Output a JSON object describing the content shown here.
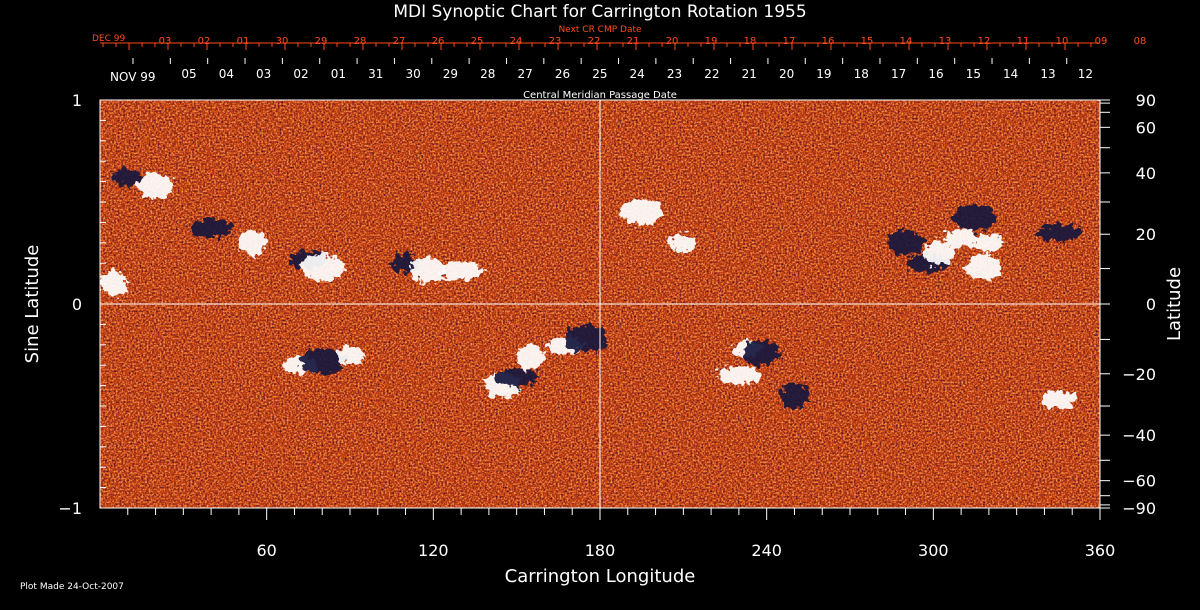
{
  "chart_data": {
    "type": "heatmap",
    "title": "MDI Synoptic Chart for Carrington Rotation 1955",
    "top_axis_title": "Next CR CMP Date",
    "middle_axis_title": "Central Meridian Passage Date",
    "xlabel": "Carrington Longitude",
    "ylabel_left": "Sine Latitude",
    "ylabel_right": "Latitude",
    "xlim": [
      0,
      360
    ],
    "ylim": [
      -1,
      1
    ],
    "x_ticks": [
      60,
      120,
      180,
      240,
      300,
      360
    ],
    "y_ticks_left": [
      {
        "value": 1,
        "label": "1"
      },
      {
        "value": 0,
        "label": "0"
      },
      {
        "value": -1,
        "label": "−1"
      }
    ],
    "y_ticks_right_deg": [
      90,
      60,
      40,
      20,
      0,
      -20,
      -40,
      -60,
      -90
    ],
    "top_axis_month_label": "DEC 99",
    "top_axis_dates": [
      "03",
      "02",
      "01",
      "30",
      "29",
      "28",
      "27",
      "26",
      "25",
      "24",
      "23",
      "22",
      "21",
      "20",
      "19",
      "18",
      "17",
      "16",
      "15",
      "14",
      "13",
      "12",
      "11",
      "10",
      "09",
      "08"
    ],
    "middle_axis_month_label": "NOV 99",
    "middle_axis_dates": [
      "05",
      "04",
      "03",
      "02",
      "01",
      "31",
      "30",
      "29",
      "28",
      "27",
      "26",
      "25",
      "24",
      "23",
      "22",
      "21",
      "20",
      "19",
      "18",
      "17",
      "16",
      "15",
      "14",
      "13",
      "12"
    ],
    "colors": {
      "background": "#000000",
      "field_base": "#d2450f",
      "positive_polarity": "#ffffff",
      "negative_polarity": "#14143c",
      "top_axis_text": "#ff4a1a",
      "axis_text": "#ffffff",
      "gridline": "#ffffff"
    },
    "active_regions": [
      {
        "lon": 10,
        "sinlat": 0.62,
        "polarity": "negative"
      },
      {
        "lon": 20,
        "sinlat": 0.58,
        "polarity": "positive"
      },
      {
        "lon": 40,
        "sinlat": 0.37,
        "polarity": "negative"
      },
      {
        "lon": 55,
        "sinlat": 0.3,
        "polarity": "positive"
      },
      {
        "lon": 75,
        "sinlat": 0.22,
        "polarity": "negative"
      },
      {
        "lon": 80,
        "sinlat": 0.18,
        "polarity": "positive"
      },
      {
        "lon": 110,
        "sinlat": 0.2,
        "polarity": "negative"
      },
      {
        "lon": 118,
        "sinlat": 0.17,
        "polarity": "positive"
      },
      {
        "lon": 130,
        "sinlat": 0.16,
        "polarity": "positive"
      },
      {
        "lon": 5,
        "sinlat": 0.1,
        "polarity": "positive"
      },
      {
        "lon": 72,
        "sinlat": -0.3,
        "polarity": "positive"
      },
      {
        "lon": 80,
        "sinlat": -0.28,
        "polarity": "negative"
      },
      {
        "lon": 90,
        "sinlat": -0.25,
        "polarity": "positive"
      },
      {
        "lon": 145,
        "sinlat": -0.4,
        "polarity": "positive"
      },
      {
        "lon": 150,
        "sinlat": -0.36,
        "polarity": "negative"
      },
      {
        "lon": 155,
        "sinlat": -0.26,
        "polarity": "positive"
      },
      {
        "lon": 168,
        "sinlat": -0.2,
        "polarity": "positive"
      },
      {
        "lon": 175,
        "sinlat": -0.17,
        "polarity": "negative"
      },
      {
        "lon": 233,
        "sinlat": -0.22,
        "polarity": "positive"
      },
      {
        "lon": 238,
        "sinlat": -0.24,
        "polarity": "negative"
      },
      {
        "lon": 230,
        "sinlat": -0.35,
        "polarity": "positive"
      },
      {
        "lon": 250,
        "sinlat": -0.45,
        "polarity": "negative"
      },
      {
        "lon": 345,
        "sinlat": -0.47,
        "polarity": "positive"
      },
      {
        "lon": 195,
        "sinlat": 0.45,
        "polarity": "positive"
      },
      {
        "lon": 210,
        "sinlat": 0.3,
        "polarity": "positive"
      },
      {
        "lon": 290,
        "sinlat": 0.3,
        "polarity": "negative"
      },
      {
        "lon": 298,
        "sinlat": 0.2,
        "polarity": "negative"
      },
      {
        "lon": 302,
        "sinlat": 0.25,
        "polarity": "positive"
      },
      {
        "lon": 310,
        "sinlat": 0.32,
        "polarity": "positive"
      },
      {
        "lon": 315,
        "sinlat": 0.42,
        "polarity": "negative"
      },
      {
        "lon": 320,
        "sinlat": 0.3,
        "polarity": "positive"
      },
      {
        "lon": 318,
        "sinlat": 0.18,
        "polarity": "positive"
      },
      {
        "lon": 345,
        "sinlat": 0.35,
        "polarity": "negative"
      }
    ],
    "grid": true,
    "legend": "none"
  },
  "footer": {
    "plot_made": "Plot Made 24-Oct-2007"
  }
}
